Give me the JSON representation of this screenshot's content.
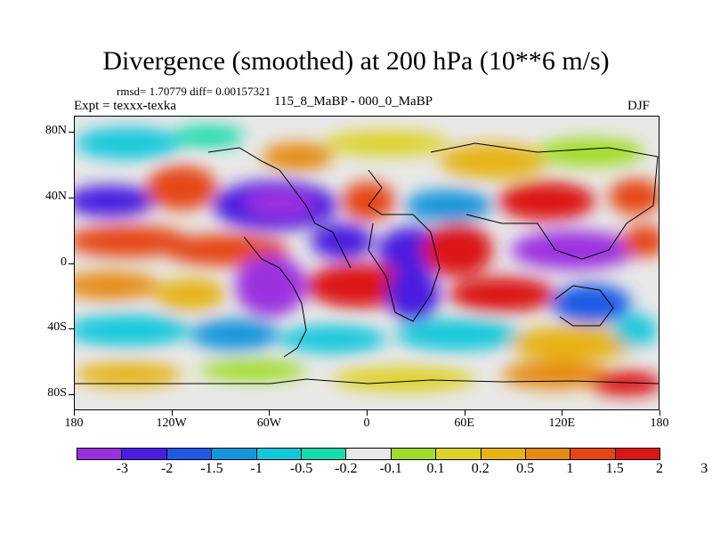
{
  "header": {
    "title": "Divergence (smoothed) at 200 hPa (10**6 m/s)",
    "rmsd_line": "rmsd= 1.70779 diff= 0.00157321",
    "expt_line": "Expt = texxx-texka",
    "experiments": "115_8_MaBP - 000_0_MaBP",
    "season": "DJF"
  },
  "map": {
    "projection": "cylindrical-equidistant",
    "lon_range": [
      -180,
      180
    ],
    "lat_range": [
      -90,
      90
    ],
    "lat_labels": [
      "80N",
      "40N",
      "0",
      "40S",
      "80S"
    ],
    "lat_values": [
      80,
      40,
      0,
      -40,
      -80
    ],
    "lon_labels": [
      "180",
      "120W",
      "60W",
      "0",
      "60E",
      "120E",
      "180"
    ],
    "lon_values": [
      -180,
      -120,
      -60,
      0,
      60,
      120,
      180
    ]
  },
  "colorbar": {
    "colors": [
      "#9b30e0",
      "#4a1ee0",
      "#1e5ae6",
      "#1496dc",
      "#14c8dc",
      "#14dcaa",
      "#e8e8e8",
      "#a0dc28",
      "#dcd228",
      "#e6b414",
      "#e68c14",
      "#e64614",
      "#dc1414"
    ],
    "labels": [
      "-3",
      "-2",
      "-1.5",
      "-1",
      "-0.5",
      "-0.2",
      "-0.1",
      "0.1",
      "0.2",
      "0.5",
      "1",
      "1.5",
      "2",
      "3"
    ]
  }
}
